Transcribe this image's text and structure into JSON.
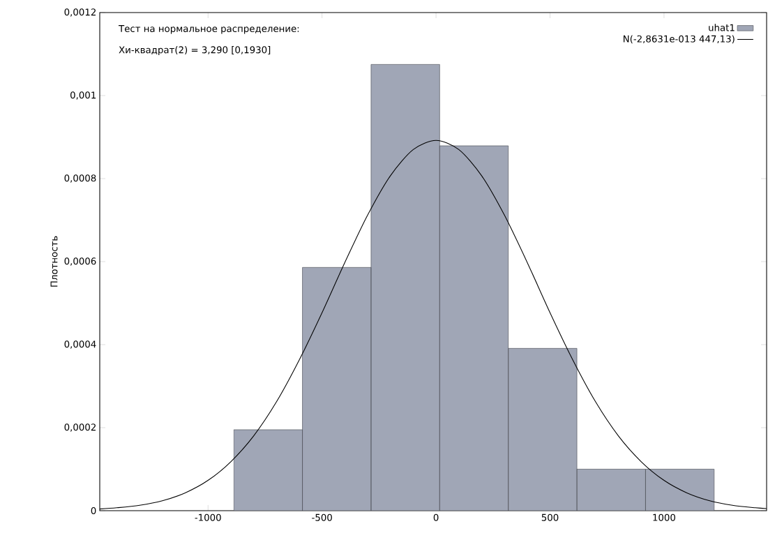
{
  "chart_data": {
    "type": "histogram",
    "ylabel": "Плотность",
    "annotations": [
      "Тест на нормальное распределение:",
      "Хи-квадрат(2) = 3,290 [0,1930]"
    ],
    "bins": [
      -887,
      -586,
      -285,
      16,
      317,
      618,
      919,
      1220
    ],
    "series": [
      {
        "name": "uhat1",
        "color": "#a0a6b6",
        "values": [
          0.000195,
          0.000586,
          0.001075,
          0.000879,
          0.000391,
          0.0001,
          0.0001
        ]
      },
      {
        "name": "N(-2,8631e-013 447,13)",
        "type": "line",
        "color": "#000000",
        "x": [
          -1475,
          -1400,
          -1300,
          -1200,
          -1100,
          -1000,
          -900,
          -800,
          -700,
          -600,
          -500,
          -400,
          -300,
          -200,
          -100,
          0,
          100,
          200,
          300,
          400,
          500,
          600,
          700,
          800,
          900,
          1000,
          1100,
          1200,
          1300,
          1400,
          1450
        ],
        "values": [
          4e-06,
          7e-06,
          1.3e-05,
          2.4e-05,
          4.3e-05,
          7.3e-05,
          0.000118,
          0.00018,
          0.000262,
          0.000363,
          0.000477,
          0.000598,
          0.000712,
          0.000807,
          0.00087,
          0.000892,
          0.00087,
          0.000807,
          0.000712,
          0.000598,
          0.000477,
          0.000363,
          0.000262,
          0.00018,
          0.000118,
          7.3e-05,
          4.3e-05,
          2.4e-05,
          1.3e-05,
          7e-06,
          5e-06
        ]
      }
    ],
    "xlim": [
      -1475,
      1450
    ],
    "ylim": [
      0,
      0.0012
    ],
    "xticks": [
      -1000,
      -500,
      0,
      500,
      1000
    ],
    "yticks": [
      0,
      {
        "value": 0.0002,
        "label": "0,0002"
      },
      {
        "value": 0.0004,
        "label": "0,0004"
      },
      {
        "value": 0.0006,
        "label": "0,0006"
      },
      {
        "value": 0.0008,
        "label": "0,0008"
      },
      {
        "value": 0.001,
        "label": "0,001"
      },
      {
        "value": 0.0012,
        "label": "0,0012"
      }
    ],
    "legend": "top right",
    "grid": false
  }
}
